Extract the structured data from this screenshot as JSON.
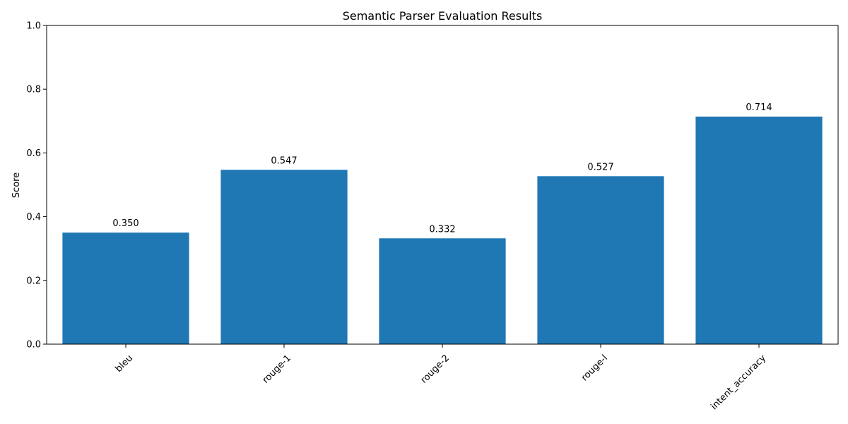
{
  "chart_data": {
    "type": "bar",
    "title": "Semantic Parser Evaluation Results",
    "xlabel": "",
    "ylabel": "Score",
    "categories": [
      "bleu",
      "rouge-1",
      "rouge-2",
      "rouge-l",
      "intent_accuracy"
    ],
    "values": [
      0.35,
      0.547,
      0.332,
      0.527,
      0.714
    ],
    "data_labels": [
      "0.350",
      "0.547",
      "0.332",
      "0.527",
      "0.714"
    ],
    "ylim": [
      0,
      1.0
    ],
    "yticks": [
      0.0,
      0.2,
      0.4,
      0.6,
      0.8,
      1.0
    ],
    "ytick_labels": [
      "0.0",
      "0.2",
      "0.4",
      "0.6",
      "0.8",
      "1.0"
    ],
    "grid": false,
    "legend": "none",
    "bar_color": "#1f77b4",
    "xtick_rotation_deg": 45
  }
}
